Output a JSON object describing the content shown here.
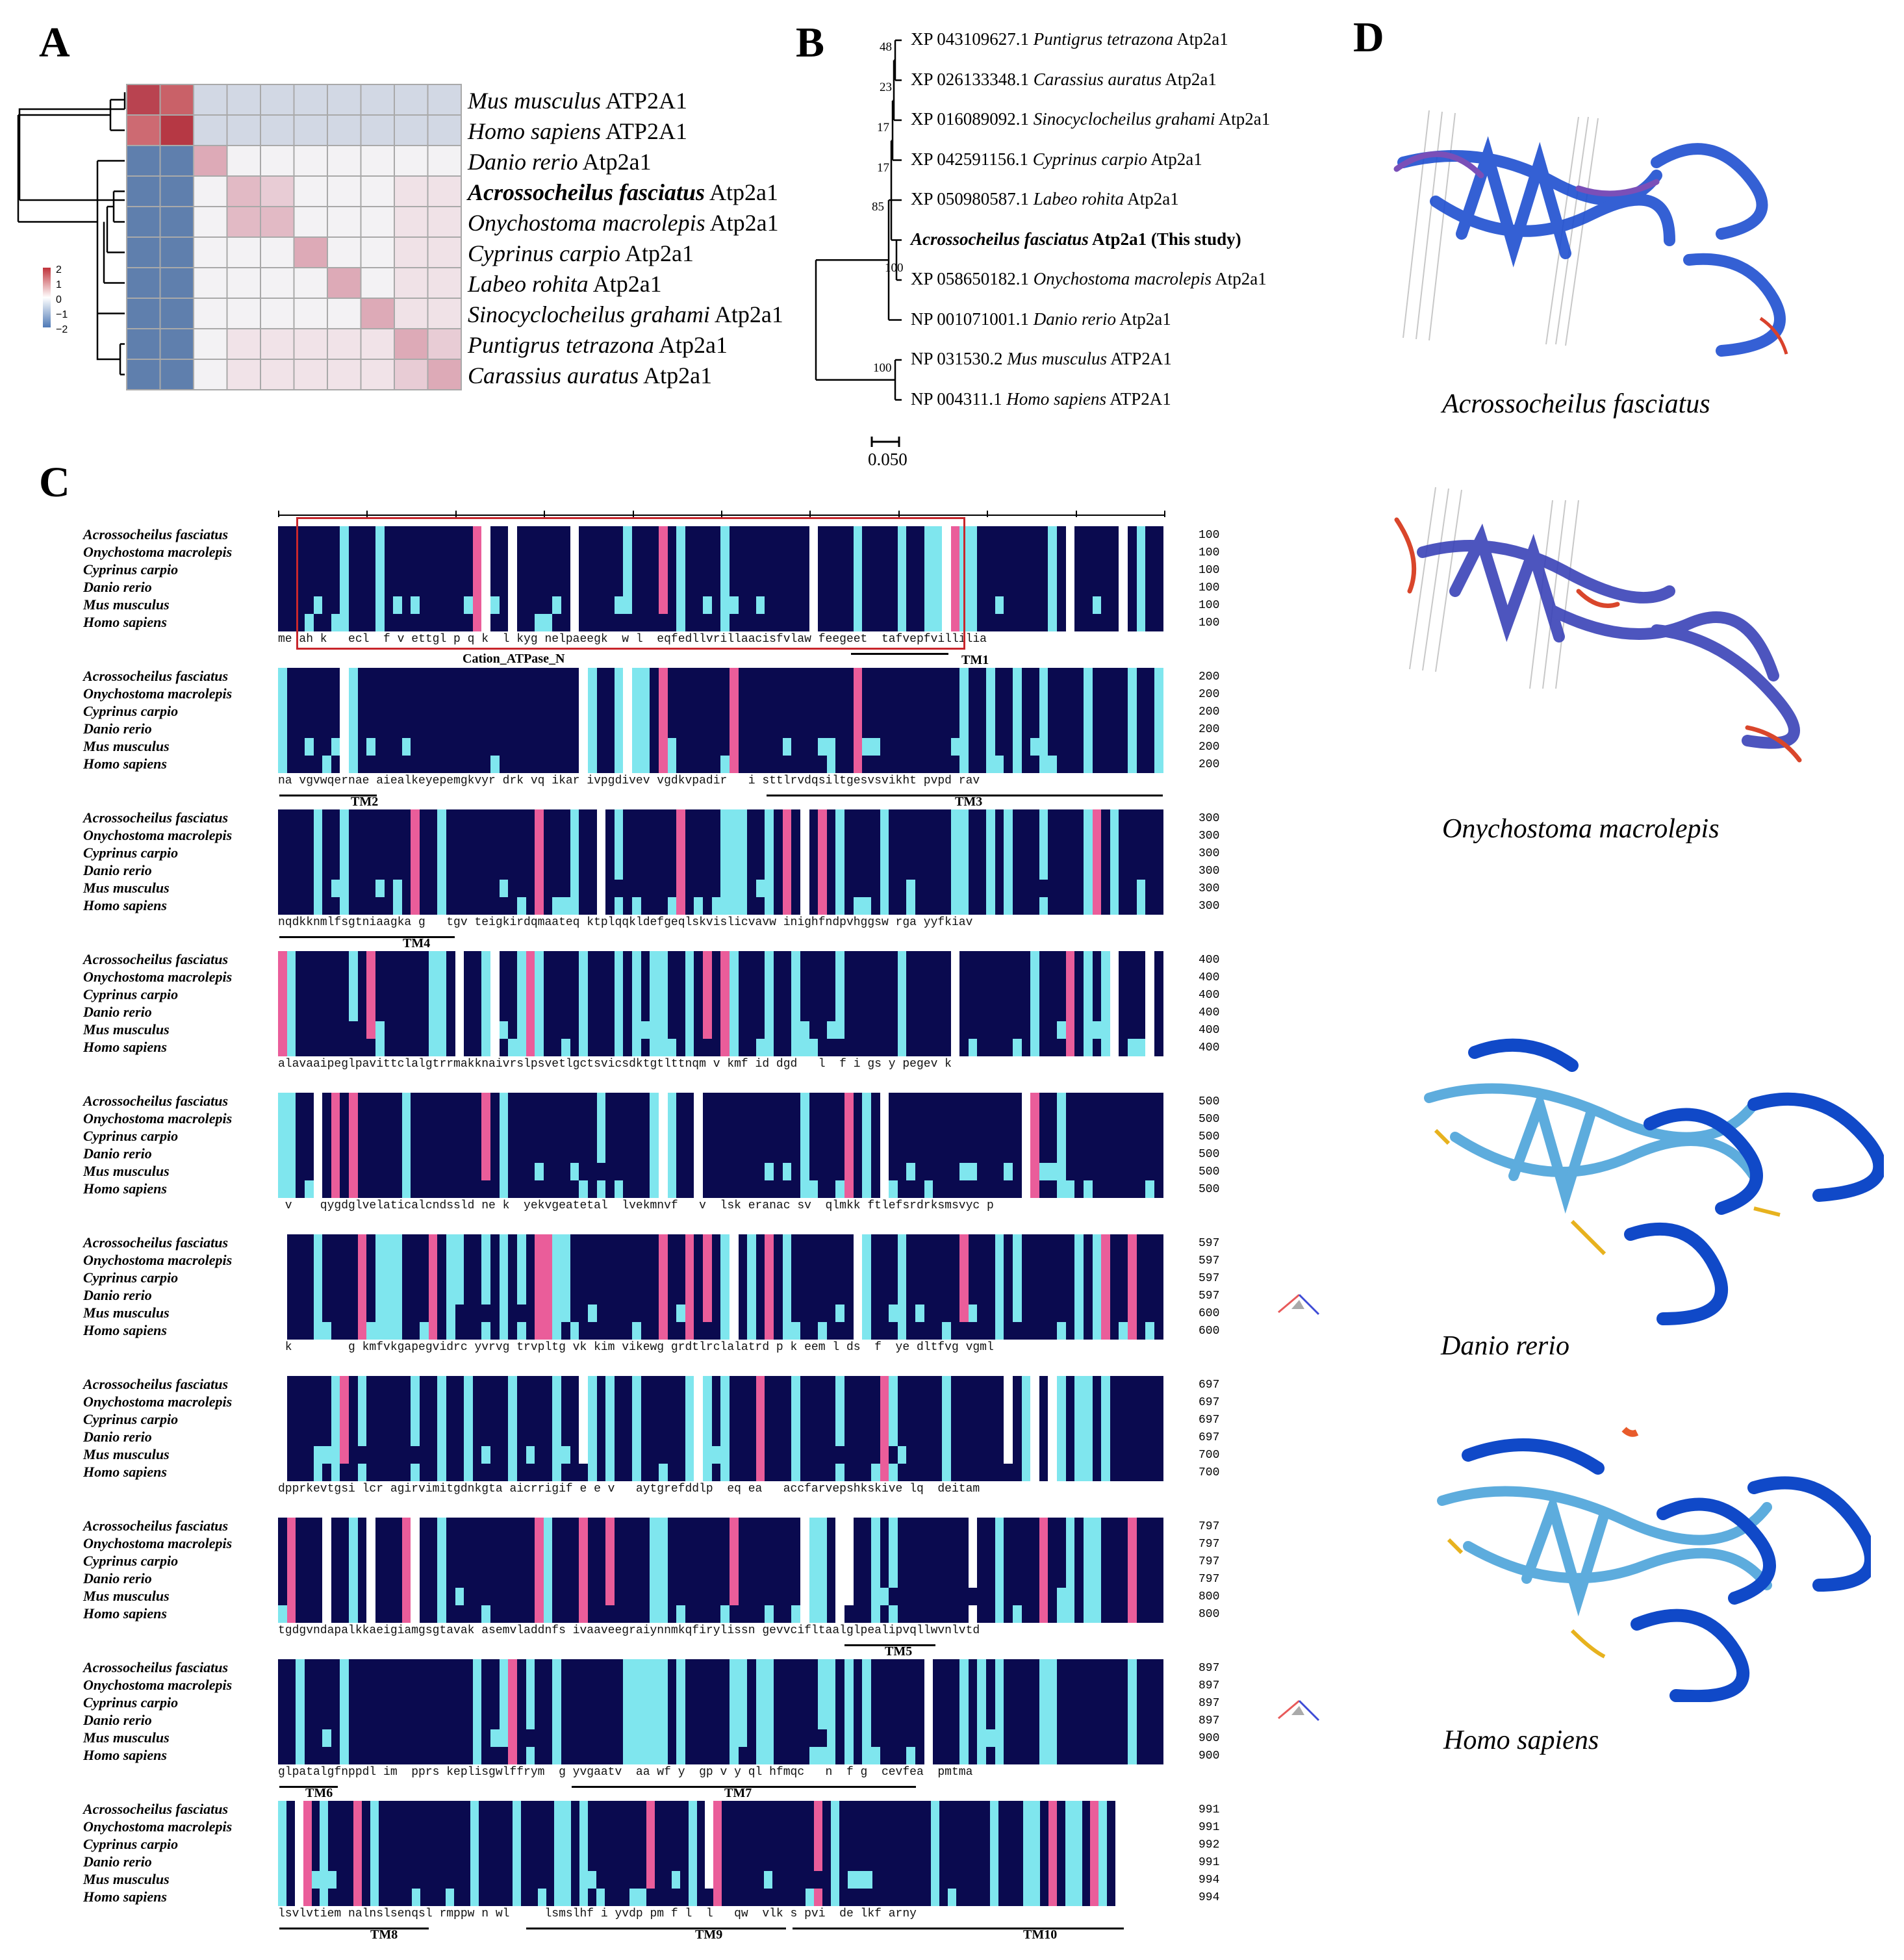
{
  "panels": {
    "a": "A",
    "b": "B",
    "c": "C",
    "d": "D"
  },
  "heatmap": {
    "legend_ticks": [
      "2",
      "1",
      "0",
      "−1",
      "−2"
    ],
    "labels": [
      {
        "genus": "Mus musculus",
        "gene": "ATP2A1",
        "bold": false
      },
      {
        "genus": "Homo sapiens",
        "gene": "ATP2A1",
        "bold": false
      },
      {
        "genus": "Danio rerio",
        "gene": "Atp2a1",
        "bold": false
      },
      {
        "genus": "Acrossocheilus fasciatus",
        "gene": "Atp2a1",
        "bold": true
      },
      {
        "genus": "Onychostoma macrolepis",
        "gene": "Atp2a1",
        "bold": false
      },
      {
        "genus": "Cyprinus carpio",
        "gene": "Atp2a1",
        "bold": false
      },
      {
        "genus": "Labeo rohita",
        "gene": "Atp2a1",
        "bold": false
      },
      {
        "genus": "Sinocyclocheilus grahami",
        "gene": "Atp2a1",
        "bold": false
      },
      {
        "genus": "Puntigrus tetrazona",
        "gene": "Atp2a1",
        "bold": false
      },
      {
        "genus": "Carassius auratus",
        "gene": "Atp2a1",
        "bold": false
      }
    ]
  },
  "tree": {
    "leaves": [
      {
        "acc": "XP 043109627.1",
        "sp": "Puntigrus tetrazona",
        "gene": "Atp2a1",
        "bold": false,
        "suffix": ""
      },
      {
        "acc": "XP 026133348.1",
        "sp": "Carassius auratus",
        "gene": "Atp2a1",
        "bold": false,
        "suffix": ""
      },
      {
        "acc": "XP 016089092.1",
        "sp": "Sinocyclocheilus grahami",
        "gene": "Atp2a1",
        "bold": false,
        "suffix": ""
      },
      {
        "acc": "XP 042591156.1",
        "sp": "Cyprinus carpio",
        "gene": "Atp2a1",
        "bold": false,
        "suffix": ""
      },
      {
        "acc": "XP 050980587.1",
        "sp": "Labeo rohita",
        "gene": "Atp2a1",
        "bold": false,
        "suffix": ""
      },
      {
        "acc": "",
        "sp": "Acrossocheilus fasciatus",
        "gene": "Atp2a1",
        "bold": true,
        "suffix": "(This study)"
      },
      {
        "acc": "XP 058650182.1",
        "sp": "Onychostoma macrolepis",
        "gene": "Atp2a1",
        "bold": false,
        "suffix": ""
      },
      {
        "acc": "NP 001071001.1",
        "sp": "Danio rerio",
        "gene": "Atp2a1",
        "bold": false,
        "suffix": ""
      },
      {
        "acc": "NP 031530.2",
        "sp": "Mus musculus",
        "gene": "ATP2A1",
        "bold": false,
        "suffix": ""
      },
      {
        "acc": "NP 004311.1",
        "sp": "Homo sapiens",
        "gene": "ATP2A1",
        "bold": false,
        "suffix": ""
      }
    ],
    "bootstrap": [
      "48",
      "23",
      "17",
      "17",
      "85",
      "100",
      "100"
    ],
    "scale": "0.050"
  },
  "alignment": {
    "species": [
      "Acrossocheilus fasciatus",
      "Onychostoma macrolepis",
      "Cyprinus carpio",
      "Danio rerio",
      "Mus musculus",
      "Homo sapiens"
    ],
    "blocks": [
      {
        "nums": [
          "100",
          "100",
          "100",
          "100",
          "100",
          "100"
        ],
        "cons": "me ah k   ecl  f v ettgl p q k  l kyg nelpaeegk  w l  eqfedllvrillaacisfvlaw feegeet  tafvepfvillilia",
        "tms": [
          {
            "t": "TM1"
          }
        ],
        "domain": "Cation_ATPase_N"
      },
      {
        "nums": [
          "200",
          "200",
          "200",
          "200",
          "200",
          "200"
        ],
        "cons": "na vgvwqernae aiealkeyepemgkvyr drk vq ikar ivpgdivev vgdkvpadir   i sttlrvdqsiltgesvsvikht pvpd rav",
        "tms": [
          {
            "t": "TM2"
          },
          {
            "t": "TM3"
          }
        ]
      },
      {
        "nums": [
          "300",
          "300",
          "300",
          "300",
          "300",
          "300"
        ],
        "cons": "nqdkknmlfsgtniaagka g   tgv teigkirdqmaateq ktplqqkldefgeqlskvislicvavw inighfndpvhggsw rga yyfkiav",
        "tms": [
          {
            "t": "TM4"
          }
        ]
      },
      {
        "nums": [
          "400",
          "400",
          "400",
          "400",
          "400",
          "400"
        ],
        "cons": "alavaaipeglpavittclalgtrrmakknaivrslpsvetlgctsvicsdktgtlttnqm v kmf id dgd   l  f i gs y pegev k",
        "tms": []
      },
      {
        "nums": [
          "500",
          "500",
          "500",
          "500",
          "500",
          "500"
        ],
        "cons": " v    qygdglvelaticalcndssld ne k  yekvgeatetal  lvekmnvf   v  lsk eranac sv  qlmkk ftlefsrdrksmsvyc p",
        "tms": []
      },
      {
        "nums": [
          "597",
          "597",
          "597",
          "597",
          "600",
          "600"
        ],
        "cons": " k        g kmfvkgapegvidrc yvrvg trvpltg vk kim vikewg grdtlrclalatrd p k eem l ds  f  ye dltfvg vgml",
        "tms": []
      },
      {
        "nums": [
          "697",
          "697",
          "697",
          "697",
          "700",
          "700"
        ],
        "cons": "dpprkevtgsi lcr agirvimitgdnkgta aicrrigif e e v   aytgrefddlp  eq ea   accfarvepshkskive lq  deitam",
        "tms": []
      },
      {
        "nums": [
          "797",
          "797",
          "797",
          "797",
          "800",
          "800"
        ],
        "cons": "tgdgvndapalkkaeigiamgsgtavak asemvladdnfs ivaaveegraiynnmkqfirylissn gevvcifltaalglpealipvqllwvnlvtd",
        "tms": [
          {
            "t": "TM5"
          }
        ]
      },
      {
        "nums": [
          "897",
          "897",
          "897",
          "897",
          "900",
          "900"
        ],
        "cons": "glpatalgfnppdl im  pprs keplisgwlffrym  g yvgaatv  aa wf y  gp v y ql hfmqc   n  f g  cevfea  pmtma",
        "tms": [
          {
            "t": "TM6"
          },
          {
            "t": "TM7"
          }
        ]
      },
      {
        "nums": [
          "991",
          "991",
          "992",
          "991",
          "994",
          "994"
        ],
        "cons": "lsvlvtiem nalnslsenqsl rmppw n wl     lsmslhf i yvdp pm f l  l   qw  vlk s pvi  de lkf arny",
        "tms": [
          {
            "t": "TM8"
          },
          {
            "t": "TM9"
          },
          {
            "t": "TM10"
          }
        ]
      }
    ]
  },
  "structures": [
    "Acrossocheilus fasciatus",
    "Onychostoma macrolepis",
    "Danio rerio",
    "Homo sapiens"
  ],
  "colors": {
    "navy": "#0a0a4f",
    "cyan": "#7fe6ee",
    "pink": "#ea5d9a",
    "red": "#c8262c",
    "blue": "#1f4fd0"
  }
}
